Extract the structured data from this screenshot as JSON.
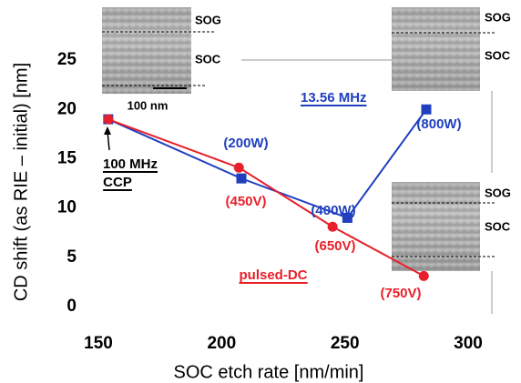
{
  "chart_data": {
    "type": "line",
    "xlabel": "SOC etch rate [nm/min]",
    "ylabel": "CD shift (as  RIE – initial) [nm]",
    "xlim": [
      150,
      300
    ],
    "ylim": [
      0,
      27.5
    ],
    "xticks": [
      150,
      200,
      250,
      300
    ],
    "yticks": [
      0,
      5,
      10,
      15,
      20,
      25
    ],
    "series": [
      {
        "name": "13.56 MHz",
        "color": "#1f3fbf",
        "marker": "square",
        "x": [
          154,
          208,
          251,
          283
        ],
        "values": [
          19,
          13,
          9,
          20
        ]
      },
      {
        "name": "pulsed-DC",
        "color": "#e8202a",
        "marker": "circle",
        "x": [
          154,
          207,
          245,
          282
        ],
        "values": [
          19,
          14.1,
          8.1,
          3.1
        ]
      }
    ],
    "annotations": [
      "(200W)",
      "(400W)",
      "(800W)",
      "(450V)",
      "(650V)",
      "(750V)",
      "100 MHz",
      "CCP"
    ],
    "insets": [
      {
        "labels": [
          "SOG",
          "SOC"
        ],
        "scale_bar": "100 nm"
      },
      {
        "labels": [
          "SOG",
          "SOC"
        ]
      },
      {
        "labels": [
          "SOG",
          "SOC"
        ]
      }
    ]
  }
}
